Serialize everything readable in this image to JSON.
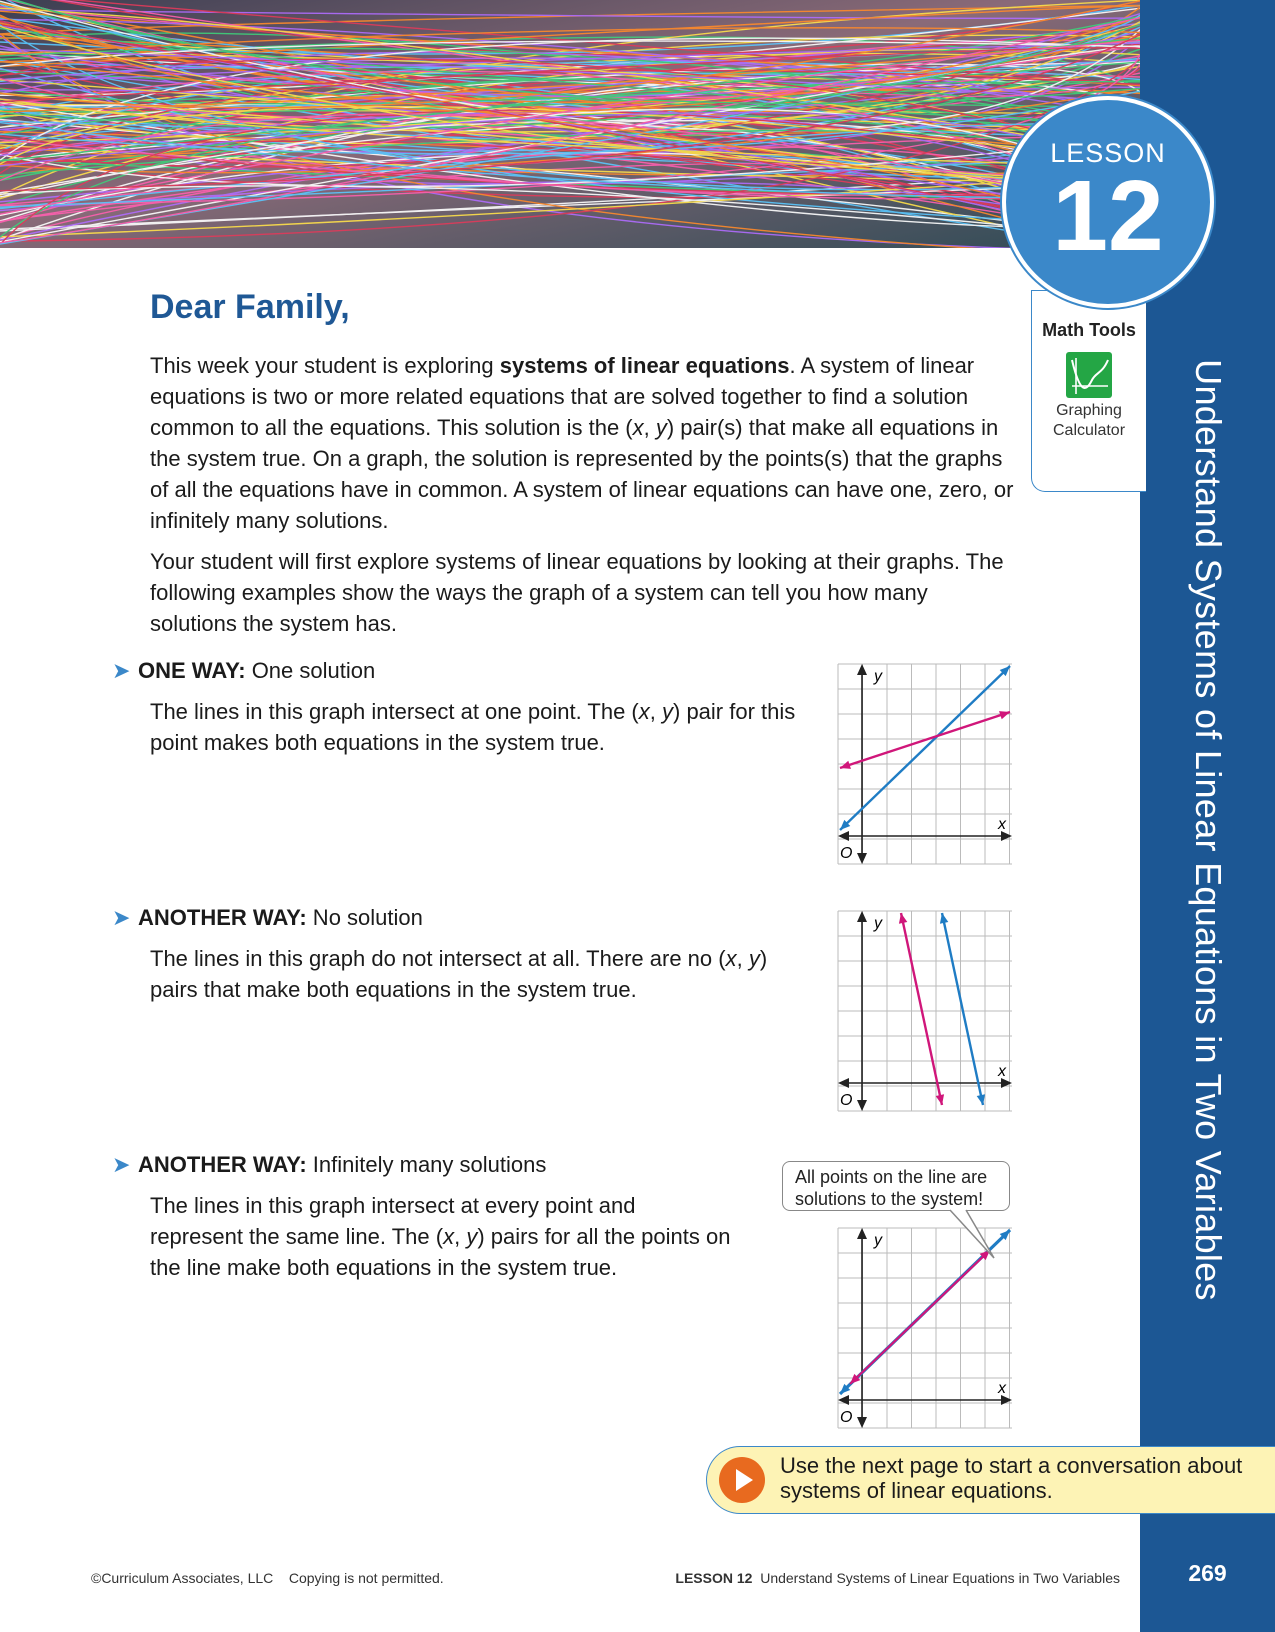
{
  "sidebar": {
    "title": "Understand Systems of Linear Equations in Two Variables",
    "page_number": "269"
  },
  "lesson": {
    "word": "LESSON",
    "number": "12"
  },
  "math_tools": {
    "title": "Math Tools",
    "tool_label": "Graphing Calculator",
    "icon": "graphing-calculator-icon"
  },
  "letter": {
    "greeting": "Dear Family,",
    "para1_a": "This week your student is exploring ",
    "para1_bold": "systems of linear equations",
    "para1_b": ". A system of linear equations is two or more related equations that are solved together to find a solution common to all the equations. This solution is the (",
    "para1_x": "x",
    "para1_c": ", ",
    "para1_y": "y",
    "para1_d": ") pair(s) that make all equations in the system true. On a graph, the solution is represented by the points(s) that the graphs of all the equations have in common. A system of linear equations can have one, zero, or infinitely many solutions.",
    "para2": "Your student will first explore systems of linear equations by looking at their graphs. The following examples show the ways the graph of a system can tell you how many solutions the system has."
  },
  "examples": [
    {
      "label": "ONE WAY:",
      "subtitle": " One solution",
      "text_a": "The lines in this graph intersect at one point. The (",
      "text_b": ") pair for this point makes both equations in the system true."
    },
    {
      "label": "ANOTHER WAY:",
      "subtitle": " No solution",
      "text_a": "The lines in this graph do not intersect at all. There are no (",
      "text_b": ") pairs that make both equations in the system true."
    },
    {
      "label": "ANOTHER WAY:",
      "subtitle": " Infinitely many solutions",
      "text_a": "The lines in this graph intersect at every point and represent the same line. The (",
      "text_b": ") pairs for all the points on the line make both equations in the system true."
    }
  ],
  "var_x": "x",
  "var_y": "y",
  "comma": ", ",
  "graph_labels": {
    "x": "x",
    "y": "y",
    "origin": "O"
  },
  "callout": "All points on the line are solutions to the system!",
  "prompt": "Use the next page to start a conversation about systems of linear equations.",
  "footer": {
    "copyright": "©Curriculum Associates, LLC",
    "notice": "Copying is not permitted.",
    "lesson_label": "LESSON 12",
    "lesson_title": "Understand Systems of Linear Equations in Two Variables"
  },
  "colors": {
    "blue_line": "#1f7cc4",
    "magenta_line": "#d0167a",
    "sidebar": "#1c5794",
    "accent": "#3b88c9"
  }
}
